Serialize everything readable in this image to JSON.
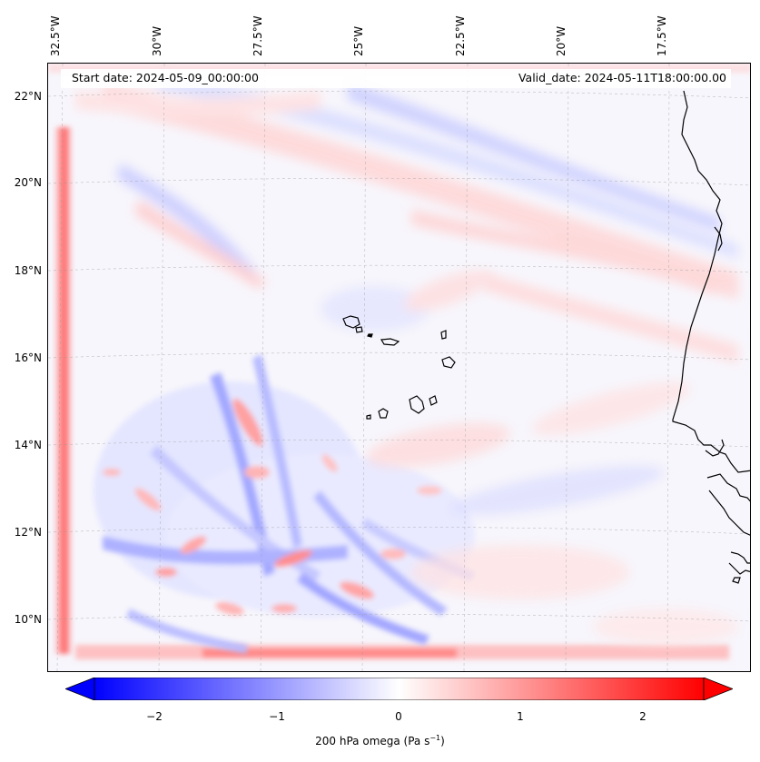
{
  "map": {
    "start_date": "Start date: 2024-05-09_00:00:00",
    "valid_date": "Valid_date: 2024-05-11T18:00:00.00",
    "lon_labels": [
      "32.5°W",
      "30°W",
      "27.5°W",
      "25°W",
      "22.5°W",
      "20°W",
      "17.5°W"
    ],
    "lat_labels": [
      "22°N",
      "20°N",
      "18°N",
      "16°N",
      "14°N",
      "12°N",
      "10°N"
    ],
    "field": "200 hPa omega",
    "region": "Cabo Verde and West African coast"
  },
  "colorbar": {
    "title": "200 hPa omega (Pa s",
    "title_sup": "−1",
    "title_end": ")",
    "ticks": [
      "−2",
      "−1",
      "0",
      "1",
      "2"
    ],
    "range": [
      -2.6,
      2.6
    ],
    "extend": "both",
    "colormap": "bwr",
    "low_color": "#0000ff",
    "mid_color": "#ffffff",
    "high_color": "#ff0000"
  }
}
